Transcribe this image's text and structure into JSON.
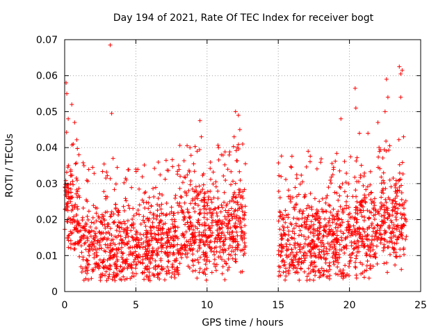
{
  "chart_data": {
    "type": "scatter",
    "title": "Day 194 of 2021, Rate Of TEC Index for receiver bogt",
    "xlabel": "GPS time / hours",
    "ylabel": "ROTI / TECUs",
    "xlim": [
      0,
      25
    ],
    "ylim": [
      0,
      0.07
    ],
    "xticks": [
      0,
      5,
      10,
      15,
      20,
      25
    ],
    "xtick_labels": [
      "0",
      "5",
      "10",
      "15",
      "20",
      "25"
    ],
    "yticks": [
      0,
      0.01,
      0.02,
      0.03,
      0.04,
      0.05,
      0.06,
      0.07
    ],
    "ytick_labels": [
      "0",
      "0.01",
      "0.02",
      "0.03",
      "0.04",
      "0.05",
      "0.06",
      "0.07"
    ],
    "grid": true,
    "marker": "+",
    "marker_color": "#ff0000",
    "data_gap_hours": [
      12.7,
      15.0
    ],
    "series": [
      {
        "name": "ROTI",
        "description": "dense scatter; typical 0.005-0.03 TECU/s across 0-12.7 h and 15-24 h",
        "notable_points": [
          {
            "x": 0.1,
            "y": 0.058
          },
          {
            "x": 0.15,
            "y": 0.055
          },
          {
            "x": 0.25,
            "y": 0.048
          },
          {
            "x": 0.5,
            "y": 0.052
          },
          {
            "x": 0.7,
            "y": 0.047
          },
          {
            "x": 0.6,
            "y": 0.041
          },
          {
            "x": 1.0,
            "y": 0.038
          },
          {
            "x": 3.2,
            "y": 0.0685
          },
          {
            "x": 3.3,
            "y": 0.0495
          },
          {
            "x": 3.4,
            "y": 0.037
          },
          {
            "x": 5.0,
            "y": 0.034
          },
          {
            "x": 8.0,
            "y": 0.035
          },
          {
            "x": 8.8,
            "y": 0.04
          },
          {
            "x": 9.3,
            "y": 0.039
          },
          {
            "x": 9.5,
            "y": 0.0475
          },
          {
            "x": 9.6,
            "y": 0.043
          },
          {
            "x": 10.8,
            "y": 0.04
          },
          {
            "x": 11.0,
            "y": 0.038
          },
          {
            "x": 11.9,
            "y": 0.043
          },
          {
            "x": 12.0,
            "y": 0.05
          },
          {
            "x": 12.2,
            "y": 0.049
          },
          {
            "x": 12.3,
            "y": 0.045
          },
          {
            "x": 12.5,
            "y": 0.041
          },
          {
            "x": 17.1,
            "y": 0.039
          },
          {
            "x": 19.4,
            "y": 0.048
          },
          {
            "x": 20.4,
            "y": 0.0565
          },
          {
            "x": 20.45,
            "y": 0.051
          },
          {
            "x": 20.7,
            "y": 0.044
          },
          {
            "x": 21.3,
            "y": 0.044
          },
          {
            "x": 22.0,
            "y": 0.047
          },
          {
            "x": 22.5,
            "y": 0.05
          },
          {
            "x": 22.6,
            "y": 0.059
          },
          {
            "x": 22.7,
            "y": 0.054
          },
          {
            "x": 23.5,
            "y": 0.0625
          },
          {
            "x": 23.6,
            "y": 0.0605
          },
          {
            "x": 23.6,
            "y": 0.054
          },
          {
            "x": 23.7,
            "y": 0.0615
          },
          {
            "x": 23.8,
            "y": 0.043
          }
        ]
      }
    ]
  }
}
